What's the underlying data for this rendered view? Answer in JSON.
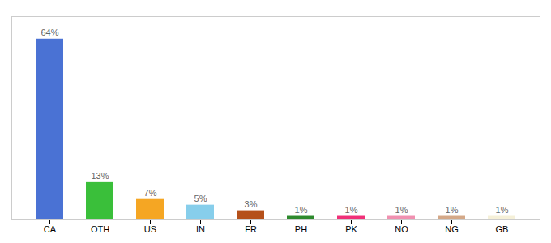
{
  "chart_data": {
    "type": "bar",
    "categories": [
      "CA",
      "OTH",
      "US",
      "IN",
      "FR",
      "PH",
      "PK",
      "NO",
      "NG",
      "GB"
    ],
    "values": [
      64,
      13,
      7,
      5,
      3,
      1,
      1,
      1,
      1,
      1
    ],
    "value_labels": [
      "64%",
      "13%",
      "7%",
      "5%",
      "3%",
      "1%",
      "1%",
      "1%",
      "1%",
      "1%"
    ],
    "colors": [
      "#4a72d4",
      "#3abf3a",
      "#f5a623",
      "#87ceeb",
      "#b5501a",
      "#2d8a2d",
      "#f03078",
      "#f090b0",
      "#d4a888",
      "#f5f0d8"
    ],
    "ylim": [
      0,
      72
    ],
    "data_labels": true,
    "tick_labels": "x"
  }
}
